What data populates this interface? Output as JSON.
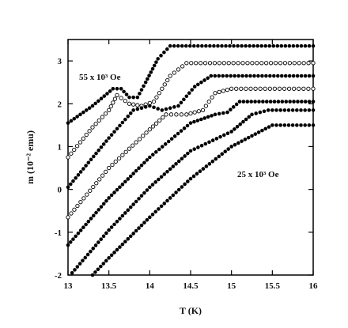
{
  "chart_data": {
    "type": "scatter",
    "xlabel": "T (K)",
    "ylabel": "m (10⁻² emu)",
    "xlim": [
      13,
      16
    ],
    "ylim": [
      -2,
      3.5
    ],
    "x_ticks": [
      "13",
      "13.5",
      "14",
      "14.5",
      "15",
      "15.5",
      "16"
    ],
    "y_ticks": [
      "-2",
      "-1",
      "0",
      "1",
      "2",
      "3"
    ],
    "grid": false,
    "annotations": [
      {
        "text": "55 x 10³ Oe"
      },
      {
        "text": "25 x 10³ Oe"
      }
    ],
    "series": [
      {
        "marker": "filled",
        "points": [
          [
            13.0,
            1.55
          ],
          [
            13.3,
            1.95
          ],
          [
            13.55,
            2.35
          ],
          [
            13.65,
            2.35
          ],
          [
            13.75,
            2.15
          ],
          [
            13.85,
            2.15
          ],
          [
            13.95,
            2.5
          ],
          [
            14.1,
            3.05
          ],
          [
            14.25,
            3.35
          ],
          [
            16.0,
            3.35
          ]
        ]
      },
      {
        "marker": "open",
        "points": [
          [
            13.0,
            0.75
          ],
          [
            13.3,
            1.45
          ],
          [
            13.5,
            1.85
          ],
          [
            13.6,
            2.2
          ],
          [
            13.75,
            2.0
          ],
          [
            13.9,
            1.95
          ],
          [
            14.05,
            2.05
          ],
          [
            14.25,
            2.65
          ],
          [
            14.45,
            2.95
          ],
          [
            16.0,
            2.95
          ]
        ]
      },
      {
        "marker": "filled",
        "points": [
          [
            13.0,
            0.05
          ],
          [
            13.5,
            1.2
          ],
          [
            13.8,
            1.85
          ],
          [
            14.0,
            1.95
          ],
          [
            14.15,
            1.85
          ],
          [
            14.35,
            1.95
          ],
          [
            14.55,
            2.4
          ],
          [
            14.75,
            2.65
          ],
          [
            16.0,
            2.65
          ]
        ]
      },
      {
        "marker": "open",
        "points": [
          [
            13.0,
            -0.65
          ],
          [
            13.5,
            0.5
          ],
          [
            14.0,
            1.4
          ],
          [
            14.2,
            1.75
          ],
          [
            14.45,
            1.75
          ],
          [
            14.65,
            1.85
          ],
          [
            14.8,
            2.25
          ],
          [
            15.0,
            2.35
          ],
          [
            16.0,
            2.35
          ]
        ]
      },
      {
        "marker": "filled",
        "points": [
          [
            13.0,
            -1.3
          ],
          [
            13.5,
            -0.2
          ],
          [
            14.0,
            0.75
          ],
          [
            14.5,
            1.55
          ],
          [
            14.8,
            1.75
          ],
          [
            14.95,
            1.8
          ],
          [
            15.1,
            2.05
          ],
          [
            16.0,
            2.05
          ]
        ]
      },
      {
        "marker": "filled",
        "points": [
          [
            13.05,
            -1.95
          ],
          [
            13.5,
            -0.95
          ],
          [
            14.0,
            0.05
          ],
          [
            14.5,
            0.9
          ],
          [
            15.0,
            1.35
          ],
          [
            15.25,
            1.75
          ],
          [
            15.45,
            1.85
          ],
          [
            16.0,
            1.85
          ]
        ]
      },
      {
        "marker": "filled",
        "points": [
          [
            13.3,
            -2.0
          ],
          [
            13.5,
            -1.6
          ],
          [
            14.0,
            -0.65
          ],
          [
            14.5,
            0.25
          ],
          [
            15.0,
            1.0
          ],
          [
            15.5,
            1.5
          ],
          [
            16.0,
            1.5
          ]
        ]
      }
    ]
  }
}
